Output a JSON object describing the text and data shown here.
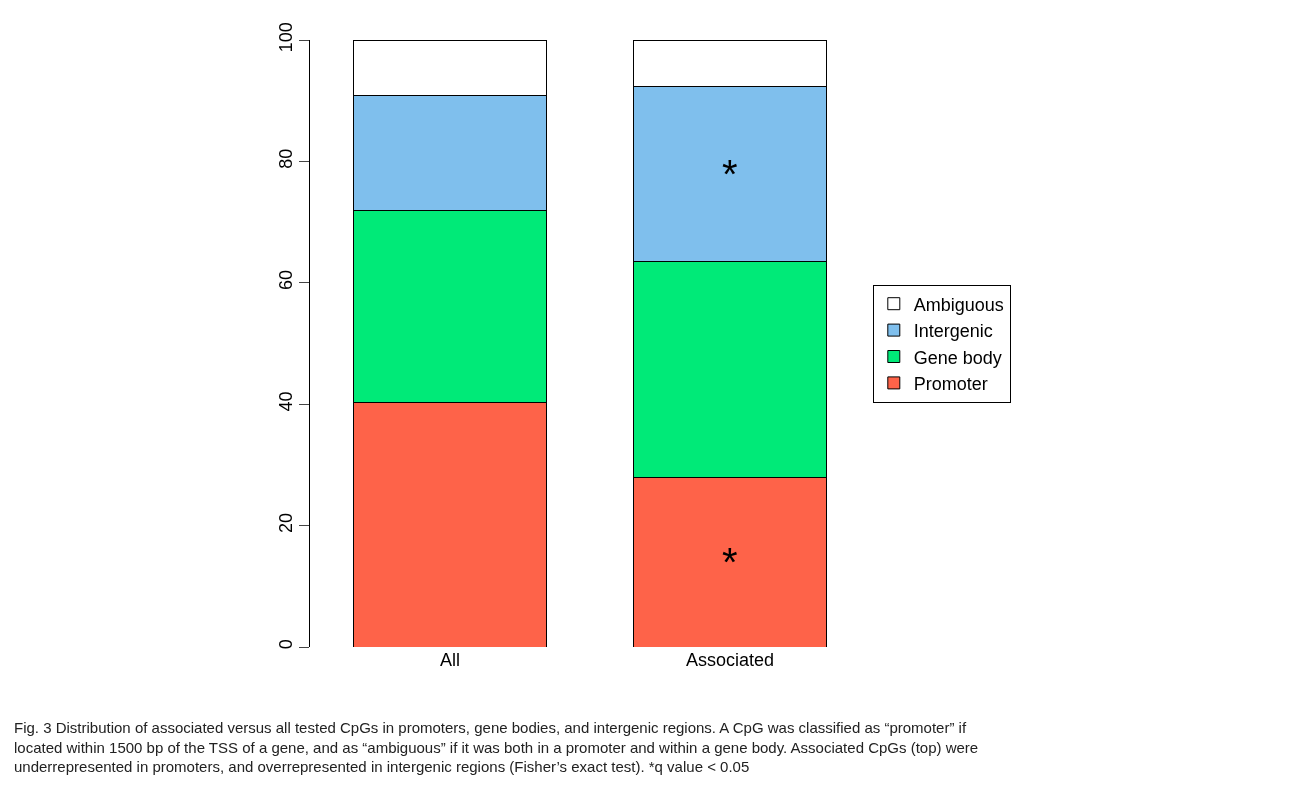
{
  "chart_data": {
    "type": "bar",
    "stacked": true,
    "categories": [
      "All",
      "Associated"
    ],
    "series": [
      {
        "name": "Promoter",
        "color": "#fe6349",
        "values": [
          40.3,
          27.9
        ]
      },
      {
        "name": "Gene body",
        "color": "#00ea78",
        "values": [
          31.6,
          35.6
        ]
      },
      {
        "name": "Intergenic",
        "color": "#7fbfed",
        "values": [
          18.9,
          28.9
        ]
      },
      {
        "name": "Ambiguous",
        "color": "#ffffff",
        "values": [
          9.2,
          7.6
        ]
      }
    ],
    "ylim": [
      0,
      100
    ],
    "yticks": [
      0,
      20,
      40,
      60,
      80,
      100
    ],
    "legend": "right",
    "annotations": [
      "*",
      "*",
      "Fig. 3 Distribution of associated versus all tested CpGs in promoters, gene bodies, and intergenic regions. A CpG was classified as “promoter” if located within 1500 bp of the TSS of a gene, and as “ambiguous” if it was both in a promoter and within a gene body. Associated CpGs (top) were underrepresented in promoters, and overrepresented in intergenic regions (Fisher’s exact test). *q value < 0.05"
    ]
  }
}
